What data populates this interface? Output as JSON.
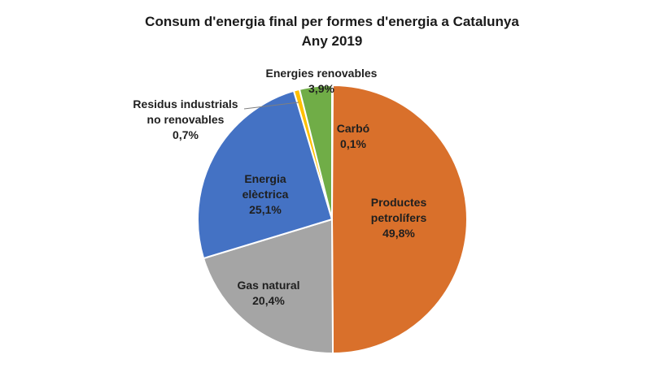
{
  "chart_data": {
    "type": "pie",
    "title": "Consum d'energia final per formes d'energia a Catalunya",
    "subtitle": "Any 2019",
    "slices": [
      {
        "name_lines": [
          "Carbó"
        ],
        "label": "0,1%",
        "value": 0.1,
        "color": "#4f7b2c"
      },
      {
        "name_lines": [
          "Productes",
          "petrolífers"
        ],
        "label": "49,8%",
        "value": 49.8,
        "color": "#d9702b"
      },
      {
        "name_lines": [
          "Gas natural"
        ],
        "label": "20,4%",
        "value": 20.4,
        "color": "#a5a5a5"
      },
      {
        "name_lines": [
          "Energia",
          "elèctrica"
        ],
        "label": "25,1%",
        "value": 25.1,
        "color": "#4472c4"
      },
      {
        "name_lines": [
          "Residus industrials",
          "no renovables"
        ],
        "label": "0,7%",
        "value": 0.7,
        "color": "#ffc000"
      },
      {
        "name_lines": [
          "Energies renovables"
        ],
        "label": "3,9%",
        "value": 3.9,
        "color": "#70ad47"
      }
    ]
  }
}
